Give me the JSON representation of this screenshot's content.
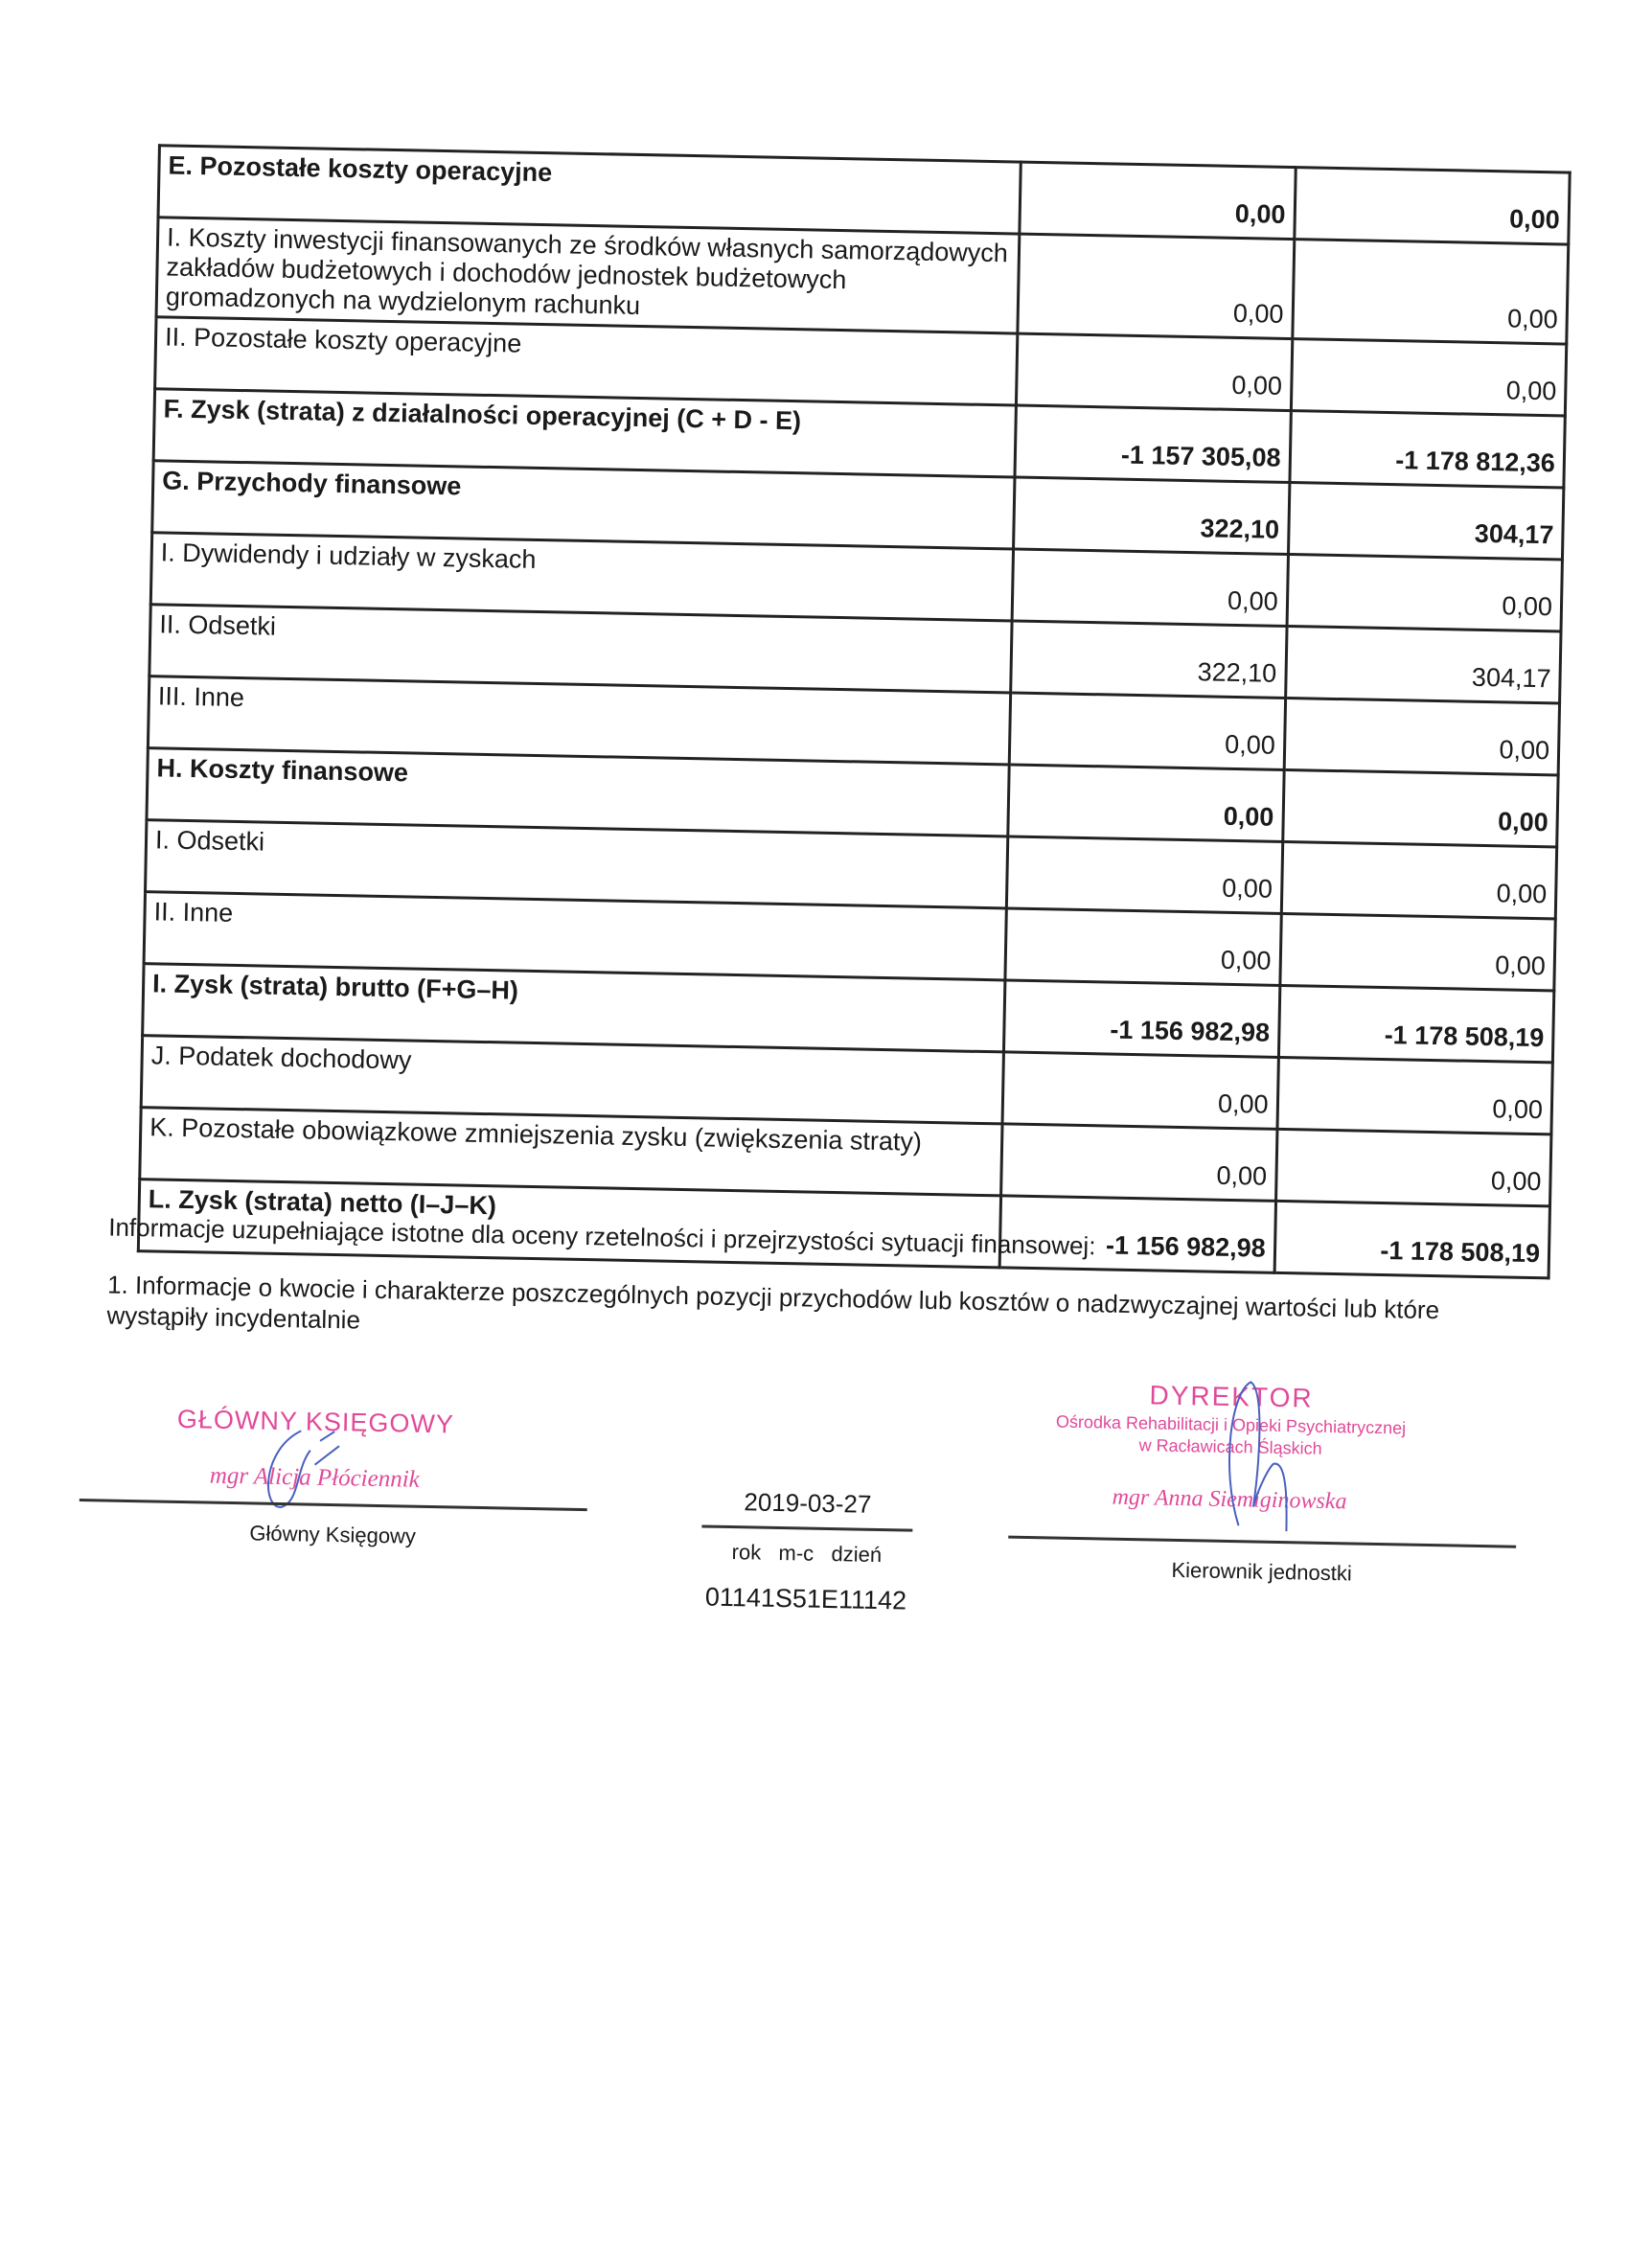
{
  "rows": [
    {
      "label": "E. Pozostałe koszty operacyjne",
      "v1": "0,00",
      "v2": "0,00",
      "bold": true
    },
    {
      "label": "I. Koszty inwestycji finansowanych ze środków własnych samorządowych zakładów budżetowych i dochodów jednostek budżetowych gromadzonych na wydzielonym rachunku",
      "v1": "0,00",
      "v2": "0,00",
      "bold": false
    },
    {
      "label": "II. Pozostałe koszty operacyjne",
      "v1": "0,00",
      "v2": "0,00",
      "bold": false
    },
    {
      "label": "F. Zysk (strata) z działalności operacyjnej (C + D - E)",
      "v1": "-1 157 305,08",
      "v2": "-1 178 812,36",
      "bold": true
    },
    {
      "label": "G. Przychody finansowe",
      "v1": "322,10",
      "v2": "304,17",
      "bold": true
    },
    {
      "label": "I. Dywidendy i udziały w zyskach",
      "v1": "0,00",
      "v2": "0,00",
      "bold": false
    },
    {
      "label": "II. Odsetki",
      "v1": "322,10",
      "v2": "304,17",
      "bold": false
    },
    {
      "label": "III. Inne",
      "v1": "0,00",
      "v2": "0,00",
      "bold": false
    },
    {
      "label": "H. Koszty finansowe",
      "v1": "0,00",
      "v2": "0,00",
      "bold": true
    },
    {
      "label": "I. Odsetki",
      "v1": "0,00",
      "v2": "0,00",
      "bold": false
    },
    {
      "label": "II. Inne",
      "v1": "0,00",
      "v2": "0,00",
      "bold": false
    },
    {
      "label": "I. Zysk (strata) brutto (F+G–H)",
      "v1": "-1 156 982,98",
      "v2": "-1 178 508,19",
      "bold": true
    },
    {
      "label": "J. Podatek dochodowy",
      "v1": "0,00",
      "v2": "0,00",
      "bold": false
    },
    {
      "label": "K. Pozostałe obowiązkowe zmniejszenia zysku (zwiększenia straty)",
      "v1": "0,00",
      "v2": "0,00",
      "bold": false
    },
    {
      "label": "L. Zysk (strata) netto (I–J–K)",
      "v1": "-1 156 982,98",
      "v2": "-1 178 508,19",
      "bold": true
    }
  ],
  "notes": {
    "intro": "Informacje uzupełniające istotne dla oceny rzetelności i przejrzystości sytuacji finansowej:",
    "item1": "1. Informacje o kwocie i charakterze poszczególnych pozycji przychodów lub kosztów o nadzwyczajnej wartości lub które wystąpiły incydentalnie"
  },
  "signatures": {
    "accountant_stamp_title": "GŁÓWNY KSIĘGOWY",
    "accountant_stamp_name": "mgr Alicja Płóciennik",
    "accountant_label": "Główny Księgowy",
    "date": "2019-03-27",
    "date_parts": "rok   m-c   dzień",
    "doc_id": "01141S51E11142",
    "director_stamp_title": "DYREKTOR",
    "director_stamp_org1": "Ośrodka Rehabilitacji i Opieki Psychiatrycznej",
    "director_stamp_org2": "w Racławicach Śląskich",
    "director_stamp_name": "mgr Anna Siemiginowska",
    "director_label": "Kierownik jednostki"
  },
  "colors": {
    "stamp": "#e04a9a",
    "pen": "#4a5fc0"
  }
}
